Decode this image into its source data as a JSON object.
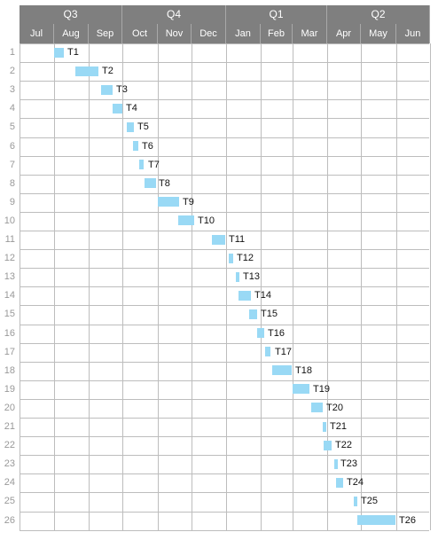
{
  "quarters": [
    "Q3",
    "Q4",
    "Q1",
    "Q2"
  ],
  "months": [
    "Jul",
    "Aug",
    "Sep",
    "Oct",
    "Nov",
    "Dec",
    "Jan",
    "Feb",
    "Mar",
    "Apr",
    "May",
    "Jun"
  ],
  "tasks": [
    {
      "row": "1",
      "label": "T1",
      "start": "Aug 1",
      "end": "Aug 10"
    },
    {
      "row": "2",
      "label": "T2",
      "start": "Aug 20",
      "end": "Sep 10"
    },
    {
      "row": "3",
      "label": "T3",
      "start": "Sep 12",
      "end": "Sep 22"
    },
    {
      "row": "4",
      "label": "T4",
      "start": "Sep 22",
      "end": "Oct 1"
    },
    {
      "row": "5",
      "label": "T5",
      "start": "Oct 5",
      "end": "Oct 11"
    },
    {
      "row": "6",
      "label": "T6",
      "start": "Oct 10",
      "end": "Oct 15"
    },
    {
      "row": "7",
      "label": "T7",
      "start": "Oct 16",
      "end": "Oct 20"
    },
    {
      "row": "8",
      "label": "T8",
      "start": "Oct 20",
      "end": "Oct 30"
    },
    {
      "row": "9",
      "label": "T9",
      "start": "Nov 1",
      "end": "Nov 20"
    },
    {
      "row": "10",
      "label": "T10",
      "start": "Nov 19",
      "end": "Dec 3"
    },
    {
      "row": "11",
      "label": "T11",
      "start": "Dec 19",
      "end": "Dec 31"
    },
    {
      "row": "12",
      "label": "T12",
      "start": "Jan 3",
      "end": "Jan 7"
    },
    {
      "row": "13",
      "label": "T13",
      "start": "Jan 10",
      "end": "Jan 13"
    },
    {
      "row": "14",
      "label": "T14",
      "start": "Jan 12",
      "end": "Jan 23"
    },
    {
      "row": "15",
      "label": "T15",
      "start": "Jan 22",
      "end": "Jan 29"
    },
    {
      "row": "16",
      "label": "T16",
      "start": "Jan 29",
      "end": "Feb 4"
    },
    {
      "row": "17",
      "label": "T17",
      "start": "Feb 5",
      "end": "Feb 10"
    },
    {
      "row": "18",
      "label": "T18",
      "start": "Feb 11",
      "end": "Feb 28"
    },
    {
      "row": "19",
      "label": "T19",
      "start": "Mar 1",
      "end": "Mar 16"
    },
    {
      "row": "20",
      "label": "T20",
      "start": "Mar 18",
      "end": "Mar 28"
    },
    {
      "row": "21",
      "label": "T21",
      "start": "Mar 28",
      "end": "Mar 31"
    },
    {
      "row": "22",
      "label": "T22",
      "start": "Mar 29",
      "end": "Apr 5"
    },
    {
      "row": "23",
      "label": "T23",
      "start": "Apr 7",
      "end": "Apr 10"
    },
    {
      "row": "24",
      "label": "T24",
      "start": "Apr 9",
      "end": "Apr 15"
    },
    {
      "row": "25",
      "label": "T25",
      "start": "Apr 25",
      "end": "Apr 28"
    },
    {
      "row": "26",
      "label": "T26",
      "start": "Apr 28",
      "end": "May 31"
    }
  ],
  "colors": {
    "header_bg": "#7f7f7f",
    "bar": "#99d9f5",
    "grid": "#bdbdbd"
  }
}
